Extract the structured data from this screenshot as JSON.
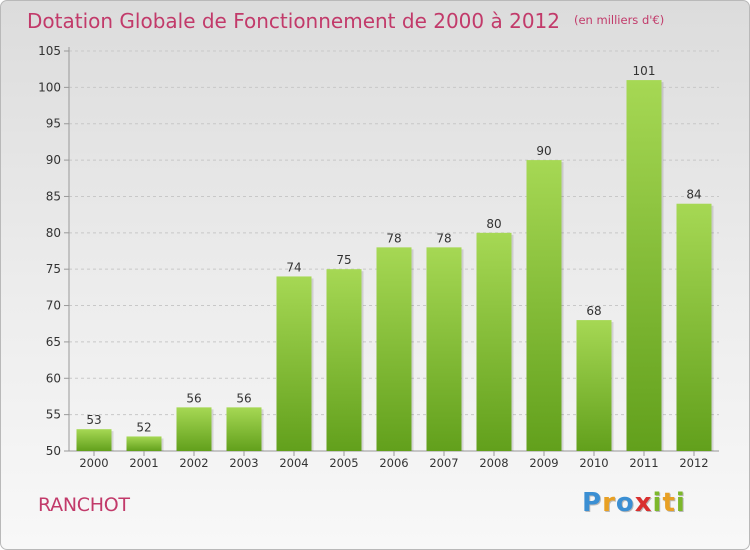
{
  "title": {
    "main": "Dotation Globale de Fonctionnement de 2000 à 2012",
    "unit": "(en milliers d'€)"
  },
  "commune": "RANCHOT",
  "brand": {
    "letters": [
      {
        "char": "P",
        "color": "#3b8fd3"
      },
      {
        "char": "r",
        "color": "#e8a024"
      },
      {
        "char": "o",
        "color": "#3b8fd3"
      },
      {
        "char": "x",
        "color": "#d9302f"
      },
      {
        "char": "i",
        "color": "#7db82b"
      },
      {
        "char": "t",
        "color": "#e8a024"
      },
      {
        "char": "i",
        "color": "#7db82b"
      }
    ]
  },
  "colors": {
    "bar_light": "#a6d854",
    "bar_dark": "#62a01c",
    "title": "#c23a6a",
    "axis": "#999999",
    "grid": "#c8c8c8"
  },
  "chart_data": {
    "type": "bar",
    "categories": [
      "2000",
      "2001",
      "2002",
      "2003",
      "2004",
      "2005",
      "2006",
      "2007",
      "2008",
      "2009",
      "2010",
      "2011",
      "2012"
    ],
    "values": [
      53,
      52,
      56,
      56,
      74,
      75,
      78,
      78,
      80,
      90,
      68,
      101,
      84
    ],
    "data_labels": [
      "53",
      "52",
      "56",
      "56",
      "74",
      "75",
      "78",
      "78",
      "80",
      "90",
      "68",
      "101",
      "84"
    ],
    "yticks": [
      50,
      55,
      60,
      65,
      70,
      75,
      80,
      85,
      90,
      95,
      100,
      105
    ],
    "ylim": [
      50,
      105
    ],
    "grid": "horizontal dashed",
    "title": "Dotation Globale de Fonctionnement de 2000 à 2012",
    "xlabel": "",
    "ylabel": ""
  }
}
